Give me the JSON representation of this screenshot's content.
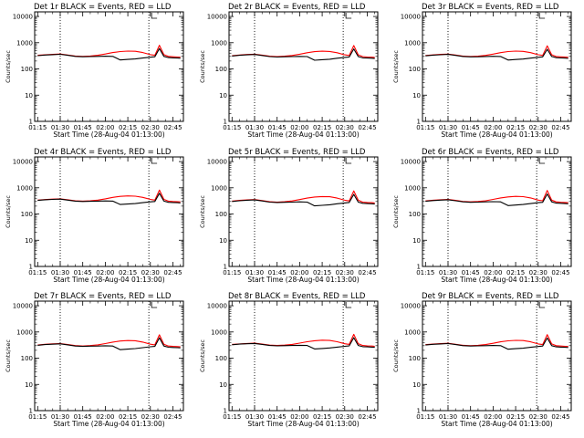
{
  "figure": {
    "x_label": "Start Time (28-Aug-04 01:13:00)",
    "y_label": "Counts/sec",
    "x_ticks": [
      "01:15",
      "01:30",
      "01:45",
      "02:00",
      "02:15",
      "02:30",
      "02:45"
    ],
    "y_ticks": [
      "1",
      "10",
      "100",
      "1000",
      "10000"
    ],
    "colors": {
      "events": "#000000",
      "lld": "#ff0000"
    }
  },
  "chart_data": [
    {
      "type": "line",
      "title": "Det 1r BLACK = Events, RED = LLD",
      "xlabel": "Start Time (28-Aug-04 01:13:00)",
      "ylabel": "Counts/sec",
      "y_scale": "log",
      "ylim": [
        1,
        15000
      ],
      "xlim": [
        "01:13",
        "02:52"
      ],
      "x": [
        "01:15",
        "01:20",
        "01:25",
        "01:30",
        "01:35",
        "01:40",
        "01:45",
        "01:50",
        "01:55",
        "02:00",
        "02:05",
        "02:10",
        "02:15",
        "02:20",
        "02:25",
        "02:30",
        "02:33",
        "02:36",
        "02:39",
        "02:42",
        "02:45",
        "02:48",
        "02:50"
      ],
      "vlines": [
        "01:30",
        "02:29"
      ],
      "series": [
        {
          "name": "Events",
          "color": "#000000",
          "values": [
            320,
            340,
            350,
            360,
            330,
            300,
            290,
            295,
            300,
            305,
            300,
            220,
            230,
            240,
            260,
            280,
            290,
            600,
            300,
            270,
            265,
            260,
            255
          ]
        },
        {
          "name": "LLD",
          "color": "#ff0000",
          "values": [
            330,
            345,
            360,
            370,
            340,
            310,
            300,
            310,
            330,
            370,
            420,
            460,
            480,
            470,
            420,
            350,
            330,
            800,
            350,
            300,
            290,
            285,
            280
          ]
        }
      ]
    },
    {
      "type": "line",
      "title": "Det 2r BLACK = Events, RED = LLD",
      "xlabel": "Start Time (28-Aug-04 01:13:00)",
      "ylabel": "Counts/sec",
      "y_scale": "log",
      "ylim": [
        1,
        15000
      ],
      "xlim": [
        "01:13",
        "02:52"
      ],
      "x": [
        "01:15",
        "01:20",
        "01:25",
        "01:30",
        "01:35",
        "01:40",
        "01:45",
        "01:50",
        "01:55",
        "02:00",
        "02:05",
        "02:10",
        "02:15",
        "02:20",
        "02:25",
        "02:30",
        "02:33",
        "02:36",
        "02:39",
        "02:42",
        "02:45",
        "02:48",
        "02:50"
      ],
      "vlines": [
        "01:30",
        "02:29"
      ],
      "series": [
        {
          "name": "Events",
          "color": "#000000",
          "values": [
            310,
            330,
            345,
            355,
            325,
            295,
            285,
            290,
            295,
            300,
            295,
            215,
            225,
            235,
            255,
            275,
            285,
            580,
            295,
            265,
            260,
            255,
            250
          ]
        },
        {
          "name": "LLD",
          "color": "#ff0000",
          "values": [
            320,
            340,
            355,
            365,
            335,
            305,
            295,
            305,
            325,
            365,
            415,
            455,
            475,
            465,
            415,
            345,
            325,
            780,
            345,
            295,
            285,
            280,
            275
          ]
        }
      ]
    },
    {
      "type": "line",
      "title": "Det 3r BLACK = Events, RED = LLD",
      "xlabel": "Start Time (28-Aug-04 01:13:00)",
      "ylabel": "Counts/sec",
      "y_scale": "log",
      "ylim": [
        1,
        15000
      ],
      "xlim": [
        "01:13",
        "02:52"
      ],
      "x": [
        "01:15",
        "01:20",
        "01:25",
        "01:30",
        "01:35",
        "01:40",
        "01:45",
        "01:50",
        "01:55",
        "02:00",
        "02:05",
        "02:10",
        "02:15",
        "02:20",
        "02:25",
        "02:30",
        "02:33",
        "02:36",
        "02:39",
        "02:42",
        "02:45",
        "02:48",
        "02:50"
      ],
      "vlines": [
        "01:30",
        "02:29"
      ],
      "series": [
        {
          "name": "Events",
          "color": "#000000",
          "values": [
            315,
            335,
            348,
            358,
            328,
            298,
            288,
            292,
            298,
            302,
            298,
            218,
            228,
            238,
            258,
            278,
            288,
            560,
            298,
            268,
            262,
            258,
            252
          ]
        },
        {
          "name": "LLD",
          "color": "#ff0000",
          "values": [
            325,
            342,
            358,
            368,
            338,
            308,
            298,
            308,
            328,
            368,
            418,
            458,
            478,
            468,
            418,
            348,
            328,
            760,
            348,
            298,
            288,
            282,
            278
          ]
        }
      ]
    },
    {
      "type": "line",
      "title": "Det 4r BLACK = Events, RED = LLD",
      "xlabel": "Start Time (28-Aug-04 01:13:00)",
      "ylabel": "Counts/sec",
      "y_scale": "log",
      "ylim": [
        1,
        15000
      ],
      "xlim": [
        "01:13",
        "02:52"
      ],
      "x": [
        "01:15",
        "01:20",
        "01:25",
        "01:30",
        "01:35",
        "01:40",
        "01:45",
        "01:50",
        "01:55",
        "02:00",
        "02:05",
        "02:10",
        "02:15",
        "02:20",
        "02:25",
        "02:30",
        "02:33",
        "02:36",
        "02:39",
        "02:42",
        "02:45",
        "02:48",
        "02:50"
      ],
      "vlines": [
        "01:30",
        "02:29"
      ],
      "series": [
        {
          "name": "Events",
          "color": "#000000",
          "values": [
            330,
            350,
            360,
            370,
            340,
            310,
            300,
            305,
            310,
            315,
            310,
            230,
            240,
            250,
            270,
            290,
            300,
            620,
            310,
            280,
            275,
            270,
            265
          ]
        },
        {
          "name": "LLD",
          "color": "#ff0000",
          "values": [
            340,
            355,
            370,
            380,
            350,
            320,
            310,
            320,
            340,
            380,
            430,
            470,
            490,
            480,
            430,
            360,
            340,
            820,
            360,
            310,
            300,
            295,
            290
          ]
        }
      ]
    },
    {
      "type": "line",
      "title": "Det 5r BLACK = Events, RED = LLD",
      "xlabel": "Start Time (28-Aug-04 01:13:00)",
      "ylabel": "Counts/sec",
      "y_scale": "log",
      "ylim": [
        1,
        15000
      ],
      "xlim": [
        "01:13",
        "02:52"
      ],
      "x": [
        "01:15",
        "01:20",
        "01:25",
        "01:30",
        "01:35",
        "01:40",
        "01:45",
        "01:50",
        "01:55",
        "02:00",
        "02:05",
        "02:10",
        "02:15",
        "02:20",
        "02:25",
        "02:30",
        "02:33",
        "02:36",
        "02:39",
        "02:42",
        "02:45",
        "02:48",
        "02:50"
      ],
      "vlines": [
        "01:30",
        "02:29"
      ],
      "series": [
        {
          "name": "Events",
          "color": "#000000",
          "values": [
            300,
            320,
            335,
            345,
            315,
            285,
            275,
            280,
            285,
            290,
            285,
            205,
            215,
            225,
            245,
            265,
            275,
            560,
            285,
            255,
            250,
            245,
            240
          ]
        },
        {
          "name": "LLD",
          "color": "#ff0000",
          "values": [
            310,
            330,
            345,
            355,
            325,
            295,
            285,
            295,
            315,
            355,
            405,
            445,
            465,
            455,
            405,
            335,
            315,
            760,
            335,
            285,
            275,
            270,
            265
          ]
        }
      ]
    },
    {
      "type": "line",
      "title": "Det 6r BLACK = Events, RED = LLD",
      "xlabel": "Start Time (28-Aug-04 01:13:00)",
      "ylabel": "Counts/sec",
      "y_scale": "log",
      "ylim": [
        1,
        15000
      ],
      "xlim": [
        "01:13",
        "02:52"
      ],
      "x": [
        "01:15",
        "01:20",
        "01:25",
        "01:30",
        "01:35",
        "01:40",
        "01:45",
        "01:50",
        "01:55",
        "02:00",
        "02:05",
        "02:10",
        "02:15",
        "02:20",
        "02:25",
        "02:30",
        "02:33",
        "02:36",
        "02:39",
        "02:42",
        "02:45",
        "02:48",
        "02:50"
      ],
      "vlines": [
        "01:30",
        "02:29"
      ],
      "series": [
        {
          "name": "Events",
          "color": "#000000",
          "values": [
            305,
            325,
            340,
            350,
            320,
            290,
            280,
            285,
            290,
            295,
            290,
            210,
            220,
            230,
            250,
            270,
            280,
            580,
            290,
            260,
            255,
            250,
            245
          ]
        },
        {
          "name": "LLD",
          "color": "#ff0000",
          "values": [
            315,
            335,
            350,
            360,
            330,
            300,
            290,
            300,
            320,
            360,
            410,
            450,
            470,
            460,
            410,
            340,
            320,
            790,
            340,
            290,
            280,
            275,
            270
          ]
        }
      ]
    },
    {
      "type": "line",
      "title": "Det 7r BLACK = Events, RED = LLD",
      "xlabel": "Start Time (28-Aug-04 01:13:00)",
      "ylabel": "Counts/sec",
      "y_scale": "log",
      "ylim": [
        1,
        15000
      ],
      "xlim": [
        "01:13",
        "02:52"
      ],
      "x": [
        "01:15",
        "01:20",
        "01:25",
        "01:30",
        "01:35",
        "01:40",
        "01:45",
        "01:50",
        "01:55",
        "02:00",
        "02:05",
        "02:10",
        "02:15",
        "02:20",
        "02:25",
        "02:30",
        "02:33",
        "02:36",
        "02:39",
        "02:42",
        "02:45",
        "02:48",
        "02:50"
      ],
      "vlines": [
        "01:30",
        "02:29"
      ],
      "series": [
        {
          "name": "Events",
          "color": "#000000",
          "values": [
            310,
            330,
            342,
            352,
            322,
            292,
            282,
            288,
            292,
            298,
            292,
            212,
            222,
            232,
            252,
            272,
            282,
            600,
            292,
            262,
            256,
            252,
            248
          ]
        },
        {
          "name": "LLD",
          "color": "#ff0000",
          "values": [
            320,
            338,
            352,
            362,
            332,
            302,
            292,
            302,
            322,
            362,
            412,
            452,
            472,
            462,
            412,
            342,
            322,
            780,
            342,
            292,
            282,
            278,
            272
          ]
        }
      ]
    },
    {
      "type": "line",
      "title": "Det 8r BLACK = Events, RED = LLD",
      "xlabel": "Start Time (28-Aug-04 01:13:00)",
      "ylabel": "Counts/sec",
      "y_scale": "log",
      "ylim": [
        1,
        15000
      ],
      "xlim": [
        "01:13",
        "02:52"
      ],
      "x": [
        "01:15",
        "01:20",
        "01:25",
        "01:30",
        "01:35",
        "01:40",
        "01:45",
        "01:50",
        "01:55",
        "02:00",
        "02:05",
        "02:10",
        "02:15",
        "02:20",
        "02:25",
        "02:30",
        "02:33",
        "02:36",
        "02:39",
        "02:42",
        "02:45",
        "02:48",
        "02:50"
      ],
      "vlines": [
        "01:30",
        "02:29"
      ],
      "series": [
        {
          "name": "Events",
          "color": "#000000",
          "values": [
            325,
            345,
            355,
            365,
            335,
            305,
            295,
            300,
            305,
            310,
            305,
            225,
            235,
            245,
            265,
            285,
            295,
            610,
            305,
            275,
            270,
            265,
            260
          ]
        },
        {
          "name": "LLD",
          "color": "#ff0000",
          "values": [
            335,
            350,
            365,
            375,
            345,
            315,
            305,
            315,
            335,
            375,
            425,
            465,
            485,
            475,
            425,
            355,
            335,
            810,
            355,
            305,
            295,
            290,
            285
          ]
        }
      ]
    },
    {
      "type": "line",
      "title": "Det 9r BLACK = Events, RED = LLD",
      "xlabel": "Start Time (28-Aug-04 01:13:00)",
      "ylabel": "Counts/sec",
      "y_scale": "log",
      "ylim": [
        1,
        15000
      ],
      "xlim": [
        "01:13",
        "02:52"
      ],
      "x": [
        "01:15",
        "01:20",
        "01:25",
        "01:30",
        "01:35",
        "01:40",
        "01:45",
        "01:50",
        "01:55",
        "02:00",
        "02:05",
        "02:10",
        "02:15",
        "02:20",
        "02:25",
        "02:30",
        "02:33",
        "02:36",
        "02:39",
        "02:42",
        "02:45",
        "02:48",
        "02:50"
      ],
      "vlines": [
        "01:30",
        "02:29"
      ],
      "series": [
        {
          "name": "Events",
          "color": "#000000",
          "values": [
            318,
            338,
            350,
            360,
            330,
            300,
            290,
            295,
            300,
            305,
            300,
            220,
            230,
            240,
            260,
            280,
            290,
            590,
            300,
            270,
            265,
            260,
            255
          ]
        },
        {
          "name": "LLD",
          "color": "#ff0000",
          "values": [
            328,
            345,
            360,
            370,
            340,
            310,
            300,
            310,
            330,
            370,
            420,
            460,
            480,
            470,
            420,
            350,
            330,
            790,
            350,
            300,
            290,
            285,
            280
          ]
        }
      ]
    }
  ]
}
